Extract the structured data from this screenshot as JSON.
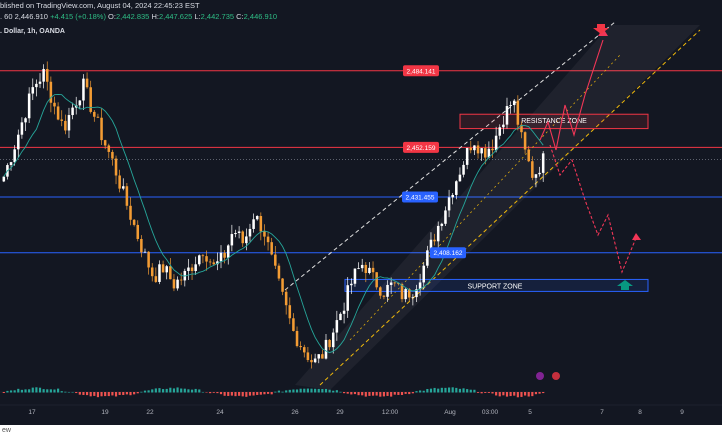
{
  "header": {
    "published": "blished on TradingView.com, August 04, 2024 22:45:23 EST",
    "symbol": ". Dollar, 1h, OANDA",
    "ohlc_prefix": ". 60",
    "last": "2,446.910",
    "change": "+4.415 (+0.18%)",
    "o_label": "O:",
    "o": "2,442.835",
    "h_label": "H:",
    "h": "2,447.625",
    "l_label": "L:",
    "l": "2,442.735",
    "c_label": "C:",
    "c": "2,446.910"
  },
  "price_labels": {
    "p1": "2,484.141",
    "p2": "2,452.159",
    "p3": "2,431.455",
    "p4": "2,408.162"
  },
  "zones": {
    "resistance": "RESISTANCE ZONE",
    "support": "SUPPORT ZONE"
  },
  "x_axis": {
    "ticks": [
      "17",
      "19",
      "22",
      "24",
      "26",
      "29",
      "12:00",
      "Aug",
      "03:00",
      "5",
      "7",
      "8",
      "9"
    ]
  },
  "bottom": {
    "label": "ew"
  },
  "colors": {
    "background": "#131722",
    "bull": "#ffffff",
    "bear": "#f39c34",
    "ma": "#26a69a",
    "red_line": "#f23645",
    "blue_line": "#2962ff",
    "forecast": "#f23657",
    "channel": "#f0b90b",
    "arrow_up": "#089981"
  },
  "chart_data": {
    "type": "candlestick",
    "title": ". Dollar, 1h, OANDA",
    "xlabel": "",
    "ylabel": "",
    "x_ticks": [
      "17",
      "19",
      "22",
      "24",
      "26",
      "29",
      "12:00",
      "Aug",
      "03:00",
      "5",
      "7",
      "8",
      "9"
    ],
    "ylim": [
      2355,
      2497
    ],
    "horizontal_levels": [
      {
        "value": 2484.141,
        "color": "#f23645"
      },
      {
        "value": 2452.159,
        "color": "#f23645"
      },
      {
        "value": 2431.455,
        "color": "#2962ff"
      },
      {
        "value": 2408.162,
        "color": "#2962ff"
      }
    ],
    "zones": [
      {
        "name": "RESISTANCE ZONE",
        "range": [
          2460,
          2466
        ]
      },
      {
        "name": "SUPPORT ZONE",
        "range": [
          2392,
          2397
        ]
      }
    ],
    "close_path": [
      2440,
      2452,
      2465,
      2478,
      2483,
      2470,
      2460,
      2470,
      2478,
      2466,
      2455,
      2445,
      2432,
      2420,
      2408,
      2398,
      2402,
      2395,
      2398,
      2404,
      2410,
      2402,
      2406,
      2418,
      2412,
      2424,
      2418,
      2402,
      2388,
      2375,
      2368,
      2362,
      2366,
      2376,
      2386,
      2398,
      2404,
      2397,
      2392,
      2395,
      2390,
      2393,
      2402,
      2414,
      2425,
      2436,
      2446,
      2456,
      2450,
      2454,
      2465,
      2472,
      2452,
      2440,
      2447
    ]
  }
}
